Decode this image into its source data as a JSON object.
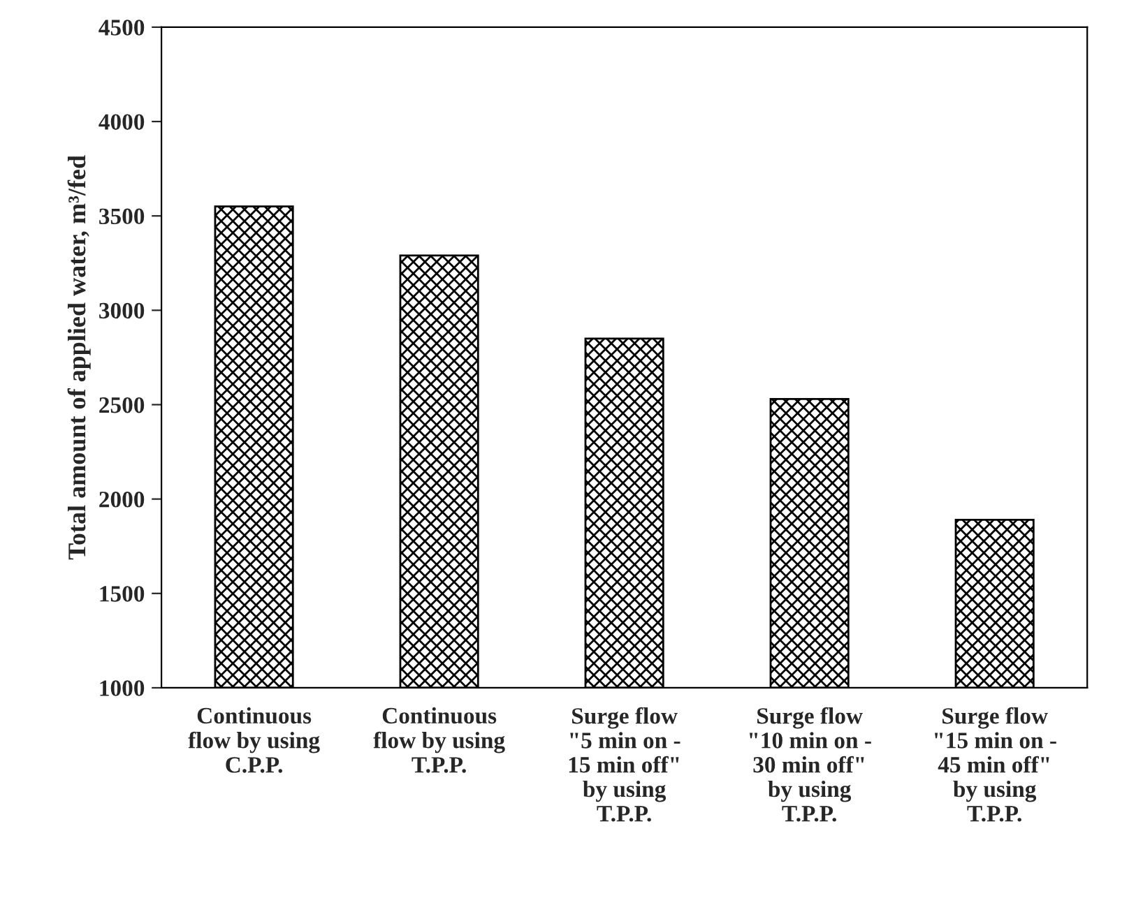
{
  "chart_data": {
    "type": "bar",
    "ylabel": "Total amount of applied water, m³/fed",
    "categories": [
      "Continuous\nflow by using\nC.P.P.",
      "Continuous\nflow by using\nT.P.P.",
      "Surge flow\n\"5 min on -\n15 min off\"\nby using\nT.P.P.",
      "Surge flow\n\"10 min on -\n30 min off\"\nby using\nT.P.P.",
      "Surge flow\n\"15 min on -\n45 min off\"\nby using\nT.P.P."
    ],
    "values": [
      3550,
      3290,
      2850,
      2530,
      1890
    ],
    "color": "#000000",
    "ylim": [
      1000,
      4500
    ],
    "yticks": [
      1000,
      1500,
      2000,
      2500,
      3000,
      3500,
      4000,
      4500
    ],
    "grid": false,
    "legend": false
  }
}
